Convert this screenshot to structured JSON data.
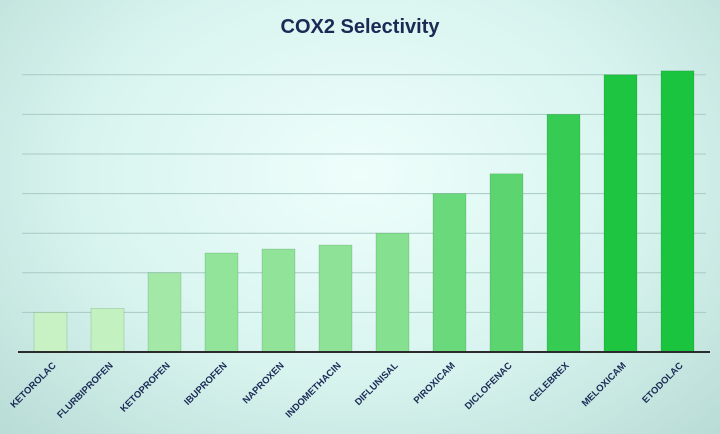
{
  "chart_data": {
    "type": "bar",
    "title": "COX2 Selectivity",
    "xlabel": "",
    "ylabel": "",
    "categories": [
      "KETOROLAC",
      "FLURBIPROFEN",
      "KETOPROFEN",
      "IBUPROFEN",
      "NAPROXEN",
      "INDOMETHACIN",
      "DIFLUNISAL",
      "PIROXICAM",
      "DICLOFENAC",
      "CELEBREX",
      "MELOXICAM",
      "ETODOLAC"
    ],
    "values": [
      1.0,
      1.1,
      2.0,
      2.5,
      2.6,
      2.7,
      3.0,
      4.0,
      4.5,
      6.0,
      7.0,
      7.1
    ],
    "ylim": [
      0,
      7.5
    ],
    "grid": true,
    "legend": "none",
    "colors": {
      "bar_low": "#c8f2c4",
      "bar_high": "#1bc43e",
      "axis": "#2b2b2b",
      "grid": "#a9c9c5",
      "title": "#1a2a55",
      "label": "#1a2a55"
    }
  }
}
